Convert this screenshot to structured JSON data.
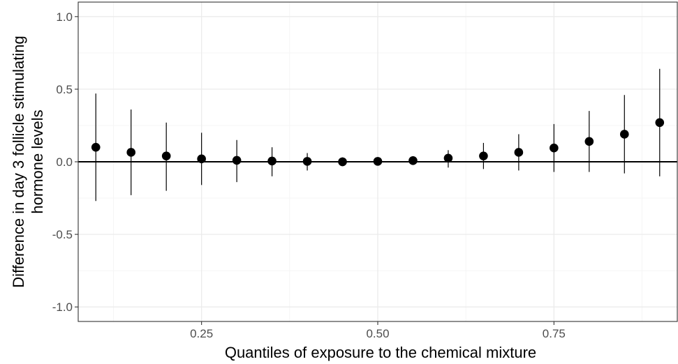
{
  "chart_data": {
    "type": "scatter",
    "title": "",
    "xlabel": "Quantiles of exposure to the chemical mixture",
    "ylabel_lines": [
      "Difference in day 3 follicle stimulating",
      "hormone levels"
    ],
    "xlim": [
      0.075,
      0.925
    ],
    "ylim": [
      -1.1,
      1.1
    ],
    "x_ticks": [
      0.25,
      0.5,
      0.75
    ],
    "x_tick_labels": [
      "0.25",
      "0.50",
      "0.75"
    ],
    "y_ticks": [
      -1.0,
      -0.5,
      0.0,
      0.5,
      1.0
    ],
    "y_tick_labels": [
      "-1.0",
      "-0.5",
      "0.0",
      "0.5",
      "1.0"
    ],
    "reference_line_y": 0,
    "grid": true,
    "points": [
      {
        "x": 0.1,
        "y": 0.1,
        "lower": -0.27,
        "upper": 0.47
      },
      {
        "x": 0.15,
        "y": 0.065,
        "lower": -0.23,
        "upper": 0.36
      },
      {
        "x": 0.2,
        "y": 0.04,
        "lower": -0.2,
        "upper": 0.27
      },
      {
        "x": 0.25,
        "y": 0.02,
        "lower": -0.16,
        "upper": 0.2
      },
      {
        "x": 0.3,
        "y": 0.01,
        "lower": -0.14,
        "upper": 0.15
      },
      {
        "x": 0.35,
        "y": 0.005,
        "lower": -0.1,
        "upper": 0.1
      },
      {
        "x": 0.4,
        "y": 0.003,
        "lower": -0.06,
        "upper": 0.06
      },
      {
        "x": 0.45,
        "y": 0.0,
        "lower": -0.03,
        "upper": 0.03
      },
      {
        "x": 0.5,
        "y": 0.003,
        "lower": 0.0,
        "upper": 0.0
      },
      {
        "x": 0.55,
        "y": 0.008,
        "lower": -0.01,
        "upper": 0.02
      },
      {
        "x": 0.6,
        "y": 0.025,
        "lower": -0.04,
        "upper": 0.08
      },
      {
        "x": 0.65,
        "y": 0.04,
        "lower": -0.05,
        "upper": 0.13
      },
      {
        "x": 0.7,
        "y": 0.065,
        "lower": -0.06,
        "upper": 0.19
      },
      {
        "x": 0.75,
        "y": 0.095,
        "lower": -0.07,
        "upper": 0.26
      },
      {
        "x": 0.8,
        "y": 0.14,
        "lower": -0.07,
        "upper": 0.35
      },
      {
        "x": 0.85,
        "y": 0.19,
        "lower": -0.08,
        "upper": 0.46
      },
      {
        "x": 0.9,
        "y": 0.27,
        "lower": -0.1,
        "upper": 0.64
      }
    ],
    "point_color": "#000000",
    "errorbar_color": "#000000"
  }
}
